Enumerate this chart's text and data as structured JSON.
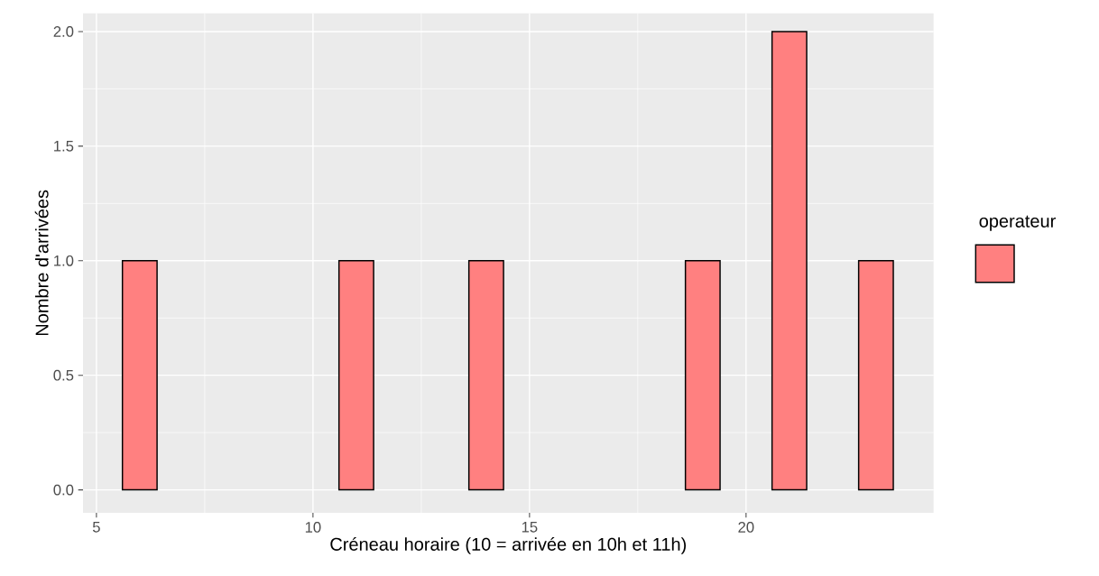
{
  "chart_data": {
    "type": "bar",
    "xlabel": "Créneau horaire (10 = arrivée en 10h et 11h)",
    "ylabel": "Nombre d'arrivées",
    "legend_title": "operateur",
    "x": [
      6,
      11,
      14,
      19,
      21,
      23
    ],
    "series": [
      {
        "color": "#ff8080",
        "values": [
          1,
          1,
          1,
          1,
          2,
          1
        ]
      }
    ],
    "xlim": [
      4.69,
      24.33
    ],
    "ylim": [
      -0.1,
      2.08
    ],
    "xticks": [
      5,
      10,
      15,
      20
    ],
    "yticks": [
      {
        "value": 0,
        "label": "0.0"
      },
      {
        "value": 0.5,
        "label": "0.5"
      },
      {
        "value": 1,
        "label": "1.0"
      },
      {
        "value": 1.5,
        "label": "1.5"
      },
      {
        "value": 2,
        "label": "2.0"
      }
    ],
    "grid": true
  }
}
